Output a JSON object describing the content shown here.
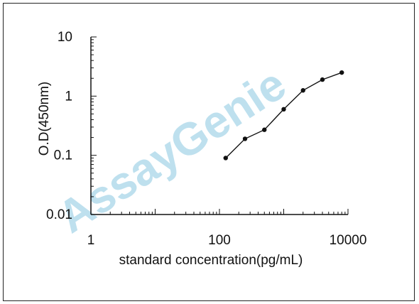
{
  "chart_data": {
    "type": "line",
    "xscale": "log",
    "yscale": "log",
    "xlim": [
      1,
      10000
    ],
    "ylim": [
      0.01,
      10
    ],
    "xticks": [
      1,
      100,
      10000
    ],
    "xtick_labels": [
      "1",
      "100",
      "10000"
    ],
    "yticks": [
      10,
      1,
      0.1,
      0.01
    ],
    "ytick_labels": [
      "10",
      "1",
      "0.1",
      "0.01"
    ],
    "xlabel": "standard concentration(pg/mL)",
    "ylabel": "O.D(450nm)",
    "grid": false,
    "series": [
      {
        "x": [
          125,
          250,
          500,
          1000,
          2000,
          4000,
          8000
        ],
        "y": [
          0.09,
          0.19,
          0.27,
          0.6,
          1.25,
          1.9,
          2.5
        ],
        "color": "#111111"
      }
    ]
  },
  "watermark": {
    "text": "AssayGenie",
    "color": "#a8d6e8"
  }
}
